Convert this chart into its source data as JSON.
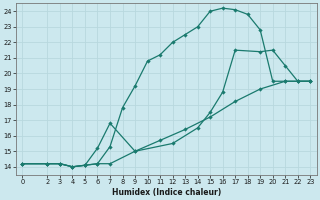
{
  "xlabel": "Humidex (Indice chaleur)",
  "bg_color": "#cce8ee",
  "line_color": "#1a7a6e",
  "grid_color": "#b8d8de",
  "xlim": [
    -0.5,
    23.5
  ],
  "ylim": [
    13.5,
    24.5
  ],
  "xticks": [
    0,
    2,
    3,
    4,
    5,
    6,
    7,
    8,
    9,
    10,
    11,
    12,
    13,
    14,
    15,
    16,
    17,
    18,
    19,
    20,
    21,
    22,
    23
  ],
  "yticks": [
    14,
    15,
    16,
    17,
    18,
    19,
    20,
    21,
    22,
    23,
    24
  ],
  "curve1_x": [
    0,
    2,
    3,
    4,
    5,
    6,
    7,
    8,
    9,
    10,
    11,
    12,
    13,
    14,
    15,
    16,
    17,
    18,
    19,
    20,
    21,
    22,
    23
  ],
  "curve1_y": [
    14.2,
    14.2,
    14.2,
    14.0,
    14.1,
    14.2,
    15.3,
    17.8,
    19.2,
    20.8,
    21.2,
    22.0,
    22.5,
    23.0,
    24.0,
    24.2,
    24.1,
    23.8,
    22.8,
    19.5,
    19.5,
    19.5,
    19.5
  ],
  "curve2_x": [
    0,
    2,
    3,
    4,
    5,
    6,
    7,
    9,
    12,
    14,
    15,
    16,
    17,
    19,
    20,
    21,
    22,
    23
  ],
  "curve2_y": [
    14.2,
    14.2,
    14.2,
    14.0,
    14.1,
    15.2,
    16.8,
    15.0,
    15.5,
    16.5,
    17.5,
    18.8,
    21.5,
    21.4,
    21.5,
    20.5,
    19.5,
    19.5
  ],
  "curve3_x": [
    0,
    2,
    3,
    4,
    5,
    6,
    7,
    9,
    11,
    13,
    15,
    17,
    19,
    21,
    22,
    23
  ],
  "curve3_y": [
    14.2,
    14.2,
    14.2,
    14.0,
    14.1,
    14.2,
    14.2,
    15.0,
    15.7,
    16.4,
    17.2,
    18.2,
    19.0,
    19.5,
    19.5,
    19.5
  ]
}
